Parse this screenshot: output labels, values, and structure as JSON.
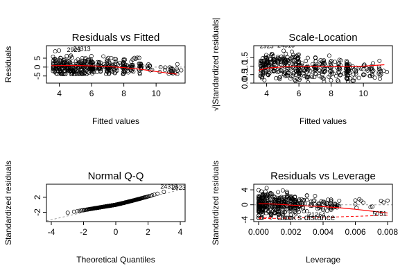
{
  "chart_data": [
    {
      "id": "resid-fitted",
      "type": "scatter",
      "title": "Residuals vs Fitted",
      "xlabel": "Fitted values",
      "ylabel": "Residuals",
      "xlim": [
        3.2,
        11.8
      ],
      "ylim": [
        -9,
        12
      ],
      "xticks": [
        4,
        6,
        8,
        10
      ],
      "yticks": [
        -5,
        0,
        5
      ],
      "ref_line": {
        "y": 0,
        "style": "dotted"
      },
      "smooth": [
        [
          3.5,
          0.8
        ],
        [
          5,
          0.9
        ],
        [
          6,
          0.7
        ],
        [
          7,
          0.3
        ],
        [
          8,
          -0.3
        ],
        [
          9,
          -1.2
        ],
        [
          10,
          -2.5
        ],
        [
          11.3,
          -4.0
        ]
      ],
      "point_labels": [
        {
          "x": 4.9,
          "y": 8.5,
          "label": "2923"
        },
        {
          "x": 5.4,
          "y": 9.0,
          "label": "24313"
        }
      ],
      "x_range": [
        3.6,
        11.4
      ],
      "y_range": [
        -4,
        10
      ]
    },
    {
      "id": "scale-location",
      "type": "scatter",
      "title": "Scale-Location",
      "xlabel": "Fitted values",
      "ylabel": "√|Standardized residuals|",
      "xlim": [
        3.2,
        11.8
      ],
      "ylim": [
        0,
        2.2
      ],
      "xticks": [
        4,
        6,
        8,
        10
      ],
      "yticks": [
        0.0,
        0.5,
        1.0,
        1.5
      ],
      "smooth": [
        [
          3.5,
          0.75
        ],
        [
          4,
          0.88
        ],
        [
          5,
          0.95
        ],
        [
          6,
          0.98
        ],
        [
          7,
          0.98
        ],
        [
          8,
          0.96
        ],
        [
          9,
          0.97
        ],
        [
          10,
          1.0
        ],
        [
          11.3,
          1.08
        ]
      ],
      "point_labels": [
        {
          "x": 4.0,
          "y": 2.05,
          "label": "2923"
        },
        {
          "x": 5.2,
          "y": 2.1,
          "label": "24313"
        }
      ],
      "x_range": [
        3.6,
        11.4
      ],
      "y_range": [
        0,
        2.0
      ]
    },
    {
      "id": "normal-qq",
      "type": "scatter",
      "title": "Normal Q-Q",
      "xlabel": "Theoretical Quantiles",
      "ylabel": "Standardized residuals",
      "xlim": [
        -4.3,
        4.3
      ],
      "ylim": [
        -4.5,
        5.5
      ],
      "xticks": [
        -4,
        -2,
        0,
        2,
        4
      ],
      "yticks": [
        -2,
        2
      ],
      "ref_line": {
        "from": [
          -4.3,
          -4.3
        ],
        "to": [
          4.3,
          4.3
        ],
        "style": "dotted"
      },
      "point_labels": [
        {
          "x": 3.3,
          "y": 4.3,
          "label": "24313"
        },
        {
          "x": 3.9,
          "y": 4.0,
          "label": "2923"
        }
      ],
      "x_range": [
        -3.9,
        3.9
      ]
    },
    {
      "id": "resid-leverage",
      "type": "scatter",
      "title": "Residuals vs Leverage",
      "xlabel": "Leverage",
      "ylabel": "Standardized residuals",
      "xlim": [
        -0.0003,
        0.0083
      ],
      "ylim": [
        -4.5,
        5.5
      ],
      "xticks": [
        0.0,
        0.002,
        0.004,
        0.006,
        0.008
      ],
      "yticks": [
        -4,
        0,
        4
      ],
      "ref_line": {
        "y": 0,
        "style": "dotted"
      },
      "smooth": [
        [
          0.0,
          0.3
        ],
        [
          0.001,
          0.2
        ],
        [
          0.002,
          -0.1
        ],
        [
          0.003,
          -0.3
        ],
        [
          0.004,
          -0.5
        ],
        [
          0.005,
          -0.8
        ],
        [
          0.006,
          -1.2
        ],
        [
          0.007,
          -1.7
        ],
        [
          0.008,
          -2.2
        ]
      ],
      "cook_line": [
        [
          0.0,
          -3.7
        ],
        [
          0.002,
          -3.55
        ],
        [
          0.004,
          -3.35
        ],
        [
          0.006,
          -3.1
        ],
        [
          0.008,
          -2.8
        ]
      ],
      "legend": "Cook's distance",
      "point_labels": [
        {
          "x": 0.0036,
          "y": -3.2,
          "label": "21264"
        },
        {
          "x": 0.0075,
          "y": -2.9,
          "label": "5051"
        }
      ],
      "x_range": [
        0.0,
        0.008
      ]
    }
  ]
}
